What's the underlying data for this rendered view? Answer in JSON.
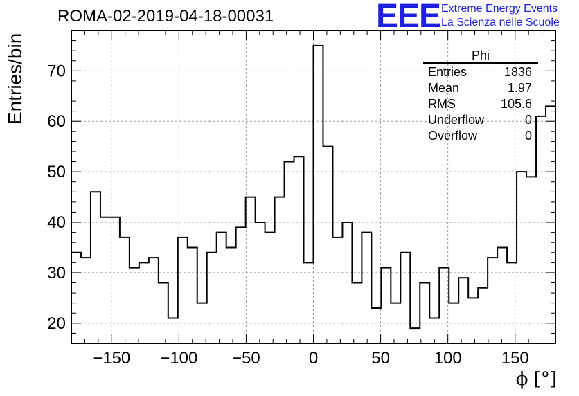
{
  "header": {
    "title": "ROMA-02-2019-04-18-00031",
    "logo": "EEE",
    "logo_line1": "Extreme Energy Events",
    "logo_line2": "La Scienza nelle Scuole"
  },
  "stats": {
    "title": "Phi",
    "rows": [
      {
        "label": "Entries",
        "value": "1836"
      },
      {
        "label": "Mean",
        "value": "1.97"
      },
      {
        "label": "RMS",
        "value": "105.6"
      },
      {
        "label": "Underflow",
        "value": "0"
      },
      {
        "label": "Overflow",
        "value": "0"
      }
    ]
  },
  "colors": {
    "line": "#000000",
    "grid": "#9a9a9a",
    "logo": "#1f1fe0"
  },
  "chart_data": {
    "type": "histogram",
    "title": "ROMA-02-2019-04-18-00031",
    "xlabel": "ϕ [°]",
    "ylabel": "Entries/bin",
    "xlim": [
      -180,
      180
    ],
    "ylim": [
      16,
      78
    ],
    "grid": true,
    "bin_width": 7.2,
    "xticks": [
      -150,
      -100,
      -50,
      0,
      50,
      100,
      150
    ],
    "xtick_labels": [
      "−150",
      "−100",
      "−50",
      "0",
      "50",
      "100",
      "150"
    ],
    "yticks": [
      20,
      30,
      40,
      50,
      60,
      70
    ],
    "ytick_labels": [
      "20",
      "30",
      "40",
      "50",
      "60",
      "70"
    ],
    "values": [
      34,
      33,
      46,
      41,
      41,
      37,
      31,
      32,
      33,
      28,
      21,
      37,
      35,
      24,
      34,
      38,
      35,
      39,
      45,
      40,
      38,
      45,
      52,
      53,
      32,
      75,
      55,
      37,
      40,
      28,
      38,
      23,
      31,
      24,
      34,
      19,
      28,
      21,
      31,
      24,
      29,
      25,
      27,
      33,
      35,
      32,
      50,
      49,
      61,
      63
    ]
  }
}
